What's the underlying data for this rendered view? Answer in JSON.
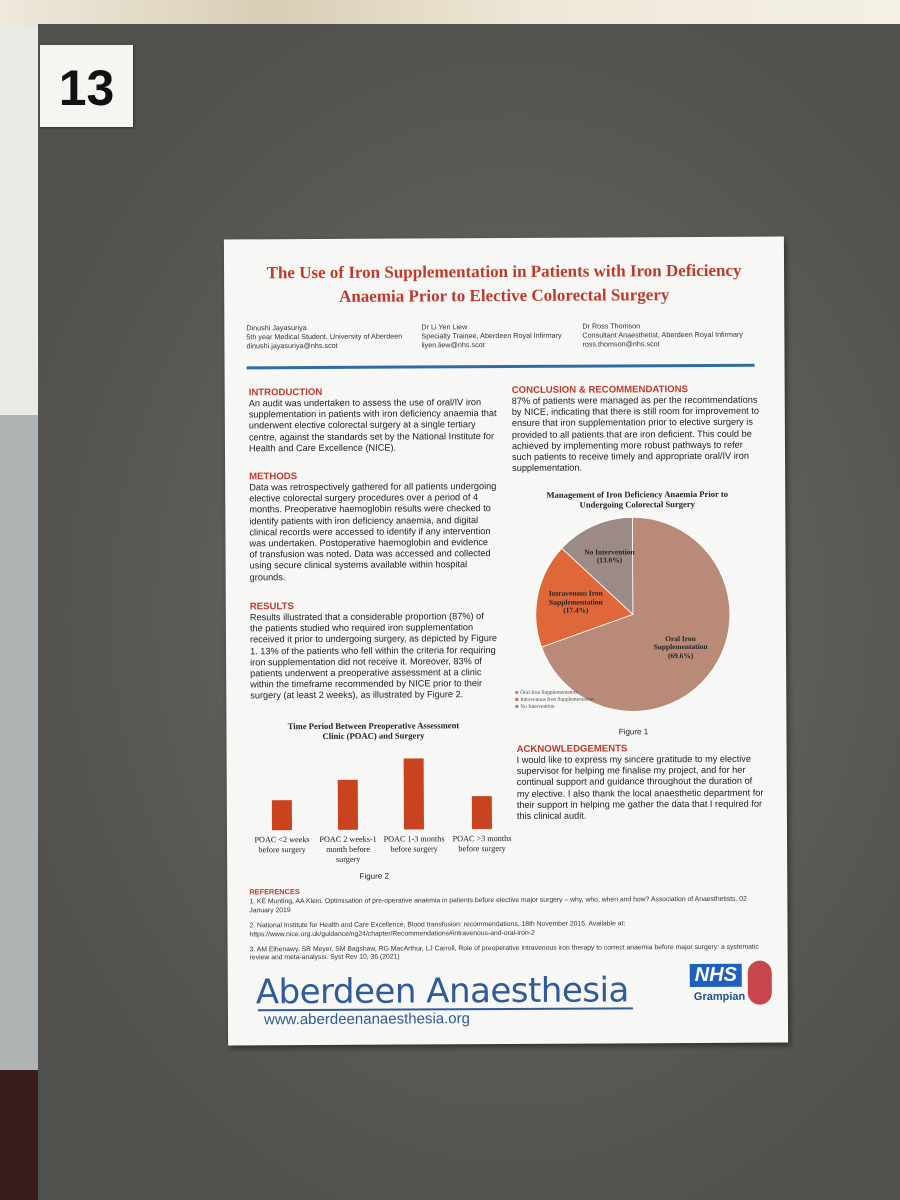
{
  "board_number": "13",
  "poster": {
    "title": "The Use of Iron Supplementation in Patients with Iron Deficiency Anaemia Prior to Elective Colorectal Surgery",
    "authors": [
      {
        "name": "Dinushi Jayasuriya",
        "role": "5th year Medical Student, University of Aberdeen",
        "email": "dinushi.jayasuriya@nhs.scot"
      },
      {
        "name": "Dr Li Yen Liew",
        "role": "Specialty Trainee, Aberdeen Royal Infirmary",
        "email": "liyen.liew@nhs.scot"
      },
      {
        "name": "Dr Ross Thomson",
        "role": "Consultant Anaesthetist, Aberdeen Royal Infirmary",
        "email": "ross.thomson@nhs.scot"
      }
    ],
    "sections": [
      {
        "heading": "INTRODUCTION",
        "body": "An audit was undertaken to assess the use of oral/IV iron supplementation in patients with iron deficiency anaemia that underwent elective colorectal surgery at a single tertiary centre, against the standards set by the National Institute for Health and Care Excellence (NICE)."
      },
      {
        "heading": "METHODS",
        "body": "Data was retrospectively gathered for all patients undergoing elective colorectal surgery procedures over a period of 4 months. Preoperative haemoglobin results were checked to identify patients with iron deficiency anaemia, and digital clinical records were accessed to identify if any intervention was undertaken. Postoperative haemoglobin and evidence of transfusion was noted. Data was accessed and collected using secure clinical systems available within hospital grounds."
      },
      {
        "heading": "RESULTS",
        "body": "Results illustrated that a considerable proportion (87%) of the patients studied who required iron supplementation received it prior to undergoing surgery, as depicted by Figure 1. 13% of the patients who fell within the criteria for requiring iron supplementation did not receive it. Moreover, 83% of patients underwent a preoperative assessment at a clinic within the timeframe recommended by NICE prior to their surgery (at least 2 weeks), as illustrated by Figure 2."
      },
      {
        "heading": "CONCLUSION & RECOMMENDATIONS",
        "body": "87% of patients were managed as per the recommendations by NICE, indicating that there is still room for improvement to ensure that iron supplementation prior to elective surgery is provided to all patients that are iron deficient. This could be achieved by implementing more robust pathways to refer such patients to receive timely and appropriate oral/IV iron supplementation."
      },
      {
        "heading": "ACKNOWLEDGEMENTS",
        "body": "I would like to express my sincere gratitude to my elective supervisor for helping me finalise my project, and for her continual support and guidance throughout the duration of my elective. I also thank the local anaesthetic department for their support in helping me gather the data that I required for this clinical audit."
      }
    ],
    "references": {
      "heading": "REFERENCES",
      "items": [
        "1. KE Munting, AA Klein. Optimisation of pre-operative anaemia in patients before elective major surgery – why, who, when and how? Association of Anaesthetists. 02 January 2019",
        "2. National Institute for Health and Care Excellence, Blood transfusion: recommendations, 18th November 2015. Available at: https://www.nice.org.uk/guidance/ng24/chapter/Recommendations#intravenous-and-oral-iron-2",
        "3. AM Elhenawy, SR Meyer, SM Bagshaw, RG MacArthur, LJ Carroll, Role of preoperative intravenous iron therapy to correct anaemia before major surgery: a systematic review and meta-analysis. Syst Rev 10, 36 (2021)"
      ]
    },
    "footer": {
      "logo": "Aberdeen Anaesthesia",
      "url": "www.aberdeenanaesthesia.org",
      "nhs": "NHS",
      "region": "Grampian"
    }
  },
  "chart_data": [
    {
      "type": "pie",
      "title": "Management of Iron Deficiency Anaemia Prior to Undergoing Colorectal Surgery",
      "categories": [
        "Oral Iron Supplementation",
        "Intravenous Iron Supplementation",
        "No Intervention"
      ],
      "values": [
        69.6,
        17.4,
        13.0
      ],
      "value_labels": [
        "(69.6%)",
        "(17.4%)",
        "(13.0%)"
      ],
      "colors": [
        "#b98a78",
        "#e0673a",
        "#9b8a85"
      ],
      "legend": "bottom-left",
      "caption": "Figure 1"
    },
    {
      "type": "bar",
      "title": "Time Period Between Preoperative Assessment Clinic (POAC) and Surgery",
      "categories": [
        "POAC <2 weeks before surgery",
        "POAC 2 weeks-1 month before surgery",
        "POAC 1-3 months before surgery",
        "POAC >3 months before surgery"
      ],
      "values": [
        30,
        50,
        71,
        33
      ],
      "color": "#c9441e",
      "caption": "Figure 2"
    }
  ]
}
